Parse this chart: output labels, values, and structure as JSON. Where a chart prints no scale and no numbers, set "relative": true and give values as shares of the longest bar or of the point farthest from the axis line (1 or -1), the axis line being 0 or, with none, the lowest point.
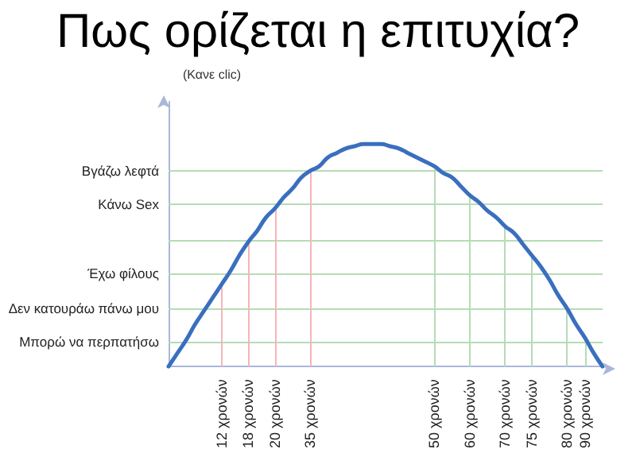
{
  "chart_data": {
    "type": "line",
    "title": "Πως ορίζεται η επιτυχία?",
    "subtitle": "(Κανε clic)",
    "relative": true,
    "categories": [
      null,
      null,
      null,
      null,
      null,
      null,
      "12 χρονών",
      null,
      null,
      "18 χρονών",
      null,
      null,
      "20 χρονών",
      null,
      null,
      null,
      "35 χρονών",
      null,
      null,
      null,
      null,
      null,
      null,
      null,
      null,
      null,
      null,
      null,
      null,
      null,
      "50 χρονών",
      null,
      null,
      null,
      "60 χρονών",
      null,
      null,
      null,
      "70 χρονών",
      null,
      null,
      "75 χρονών",
      null,
      null,
      null,
      "80 χρονών",
      null,
      "90 χρονών",
      null,
      null
    ],
    "series": [
      {
        "color": "#3a6fbf",
        "values": [
          0,
          0.06,
          0.12,
          0.19,
          0.25,
          0.31,
          0.37,
          0.43,
          0.5,
          0.56,
          0.61,
          0.67,
          0.71,
          0.76,
          0.8,
          0.85,
          0.88,
          0.9,
          0.94,
          0.96,
          0.98,
          0.99,
          1,
          1,
          1,
          0.99,
          0.98,
          0.96,
          0.94,
          0.92,
          0.9,
          0.87,
          0.85,
          0.81,
          0.77,
          0.74,
          0.7,
          0.67,
          0.63,
          0.6,
          0.55,
          0.5,
          0.45,
          0.39,
          0.32,
          0.26,
          0.19,
          0.13,
          0.06,
          0
        ]
      }
    ],
    "ref_lines": [
      {
        "axis": "y",
        "value": 0.11,
        "label": "Μπορώ να περπατήσω",
        "color": "#b5dcb5"
      },
      {
        "axis": "y",
        "value": 0.26,
        "label": "Δεν κατουράω πάνω μου",
        "color": "#b5dcb5"
      },
      {
        "axis": "y",
        "value": 0.42,
        "label": "Έχω φίλους",
        "color": "#b5dcb5"
      },
      {
        "axis": "y",
        "value": 0.57,
        "color": "#b5dcb5"
      },
      {
        "axis": "y",
        "value": 0.73,
        "label": "Κάνω Sex",
        "color": "#b5dcb5"
      },
      {
        "axis": "y",
        "value": 0.88,
        "label": "Βγάζω λεφτά",
        "color": "#b5dcb5"
      },
      {
        "axis": "x",
        "value": "12 χρονών",
        "color": "#f7b4b8"
      },
      {
        "axis": "x",
        "value": "18 χρονών",
        "color": "#f7b4b8"
      },
      {
        "axis": "x",
        "value": "20 χρονών",
        "color": "#f7b4b8"
      },
      {
        "axis": "x",
        "value": "35 χρονών",
        "color": "#f7b4b8"
      },
      {
        "axis": "x",
        "value": "50 χρονών",
        "color": "#b5dcb5"
      },
      {
        "axis": "x",
        "value": "60 χρονών",
        "color": "#b5dcb5"
      },
      {
        "axis": "x",
        "value": "70 χρονών",
        "color": "#b5dcb5"
      },
      {
        "axis": "x",
        "value": "75 χρονών",
        "color": "#b5dcb5"
      },
      {
        "axis": "x",
        "value": "80 χρονών",
        "color": "#b5dcb5"
      },
      {
        "axis": "x",
        "value": "90 χρονών",
        "color": "#b5dcb5"
      }
    ],
    "marker": "none",
    "line_style": "solid"
  }
}
